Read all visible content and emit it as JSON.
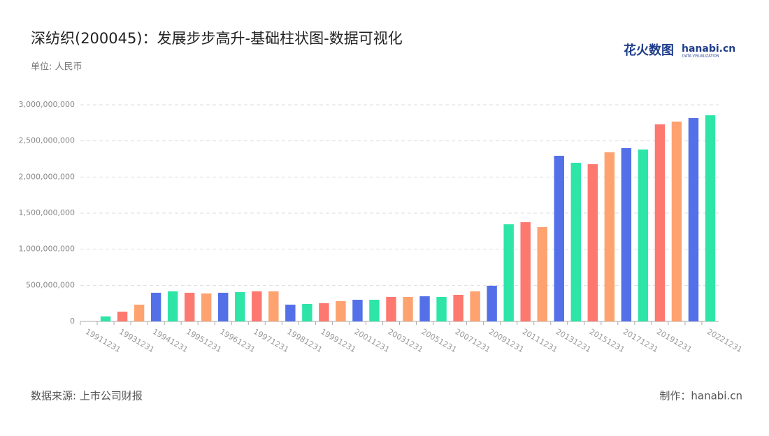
{
  "chart_data": {
    "type": "bar",
    "title": "深纺织(200045)：发展步步高升-基础柱状图-数据可视化",
    "subtitle": "单位: 人民币",
    "source": "数据来源: 上市公司财报",
    "credit": "制作：hanabi.cn",
    "logo": {
      "brand": "花火数图",
      "site": "hanabi.cn",
      "tagline": "DATA VISUALIZATION"
    },
    "categories": [
      "19911231",
      null,
      "19931231",
      null,
      "19941231",
      null,
      "19951231",
      null,
      "19961231",
      null,
      "19971231",
      null,
      "19981231",
      null,
      "19991231",
      null,
      "20011231",
      null,
      "20031231",
      null,
      "20051231",
      null,
      "20071231",
      null,
      "20091231",
      null,
      "20111231",
      null,
      "20131231",
      null,
      "20151231",
      null,
      "20171231",
      null,
      "20191231",
      null,
      null,
      "20221231"
    ],
    "values": [
      0,
      70000000,
      135000000,
      232000000,
      397000000,
      416000000,
      397000000,
      387000000,
      397000000,
      406000000,
      416000000,
      416000000,
      232000000,
      242000000,
      252000000,
      281000000,
      300000000,
      300000000,
      339000000,
      339000000,
      348000000,
      339000000,
      368000000,
      416000000,
      494000000,
      1345000000,
      1374000000,
      1306000000,
      2294000000,
      2197000000,
      2177000000,
      2342000000,
      2400000000,
      2381000000,
      2729000000,
      2768000000,
      2816000000,
      2855000000
    ],
    "palette": [
      "#5470e8",
      "#2ee5a8",
      "#fd786f",
      "#fea270"
    ],
    "ylim": [
      0,
      3000000000
    ],
    "yticks": [
      0,
      {
        "value": 500000000,
        "label": "500,000,000"
      },
      {
        "value": 1000000000,
        "label": "1,000,000,000"
      },
      {
        "value": 1500000000,
        "label": "1,500,000,000"
      },
      {
        "value": 2000000000,
        "label": "2,000,000,000"
      },
      {
        "value": 2500000000,
        "label": "2,500,000,000"
      },
      {
        "value": 3000000000,
        "label": "3,000,000,000"
      }
    ],
    "grid": true
  }
}
